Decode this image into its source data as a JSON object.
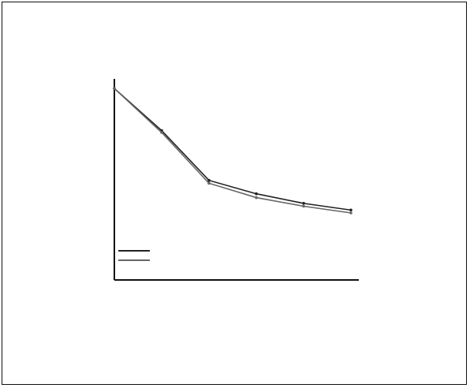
{
  "header": {
    "title": "",
    "subtitle": ""
  },
  "chart_data": {
    "type": "line",
    "title": "",
    "xlabel": "",
    "ylabel": "",
    "x": [
      0,
      1,
      2,
      3,
      4,
      5
    ],
    "series": [
      {
        "name": "",
        "values": [
          1000,
          780,
          520,
          450,
          400,
          365
        ]
      },
      {
        "name": "",
        "values": [
          1000,
          770,
          505,
          430,
          385,
          350
        ]
      }
    ],
    "ylim": [
      0,
      1050
    ],
    "xlim": [
      0,
      5
    ],
    "grid": false,
    "legend": "top-right",
    "colors": [
      "#222222",
      "#666666"
    ]
  },
  "footer": {
    "note": ""
  }
}
